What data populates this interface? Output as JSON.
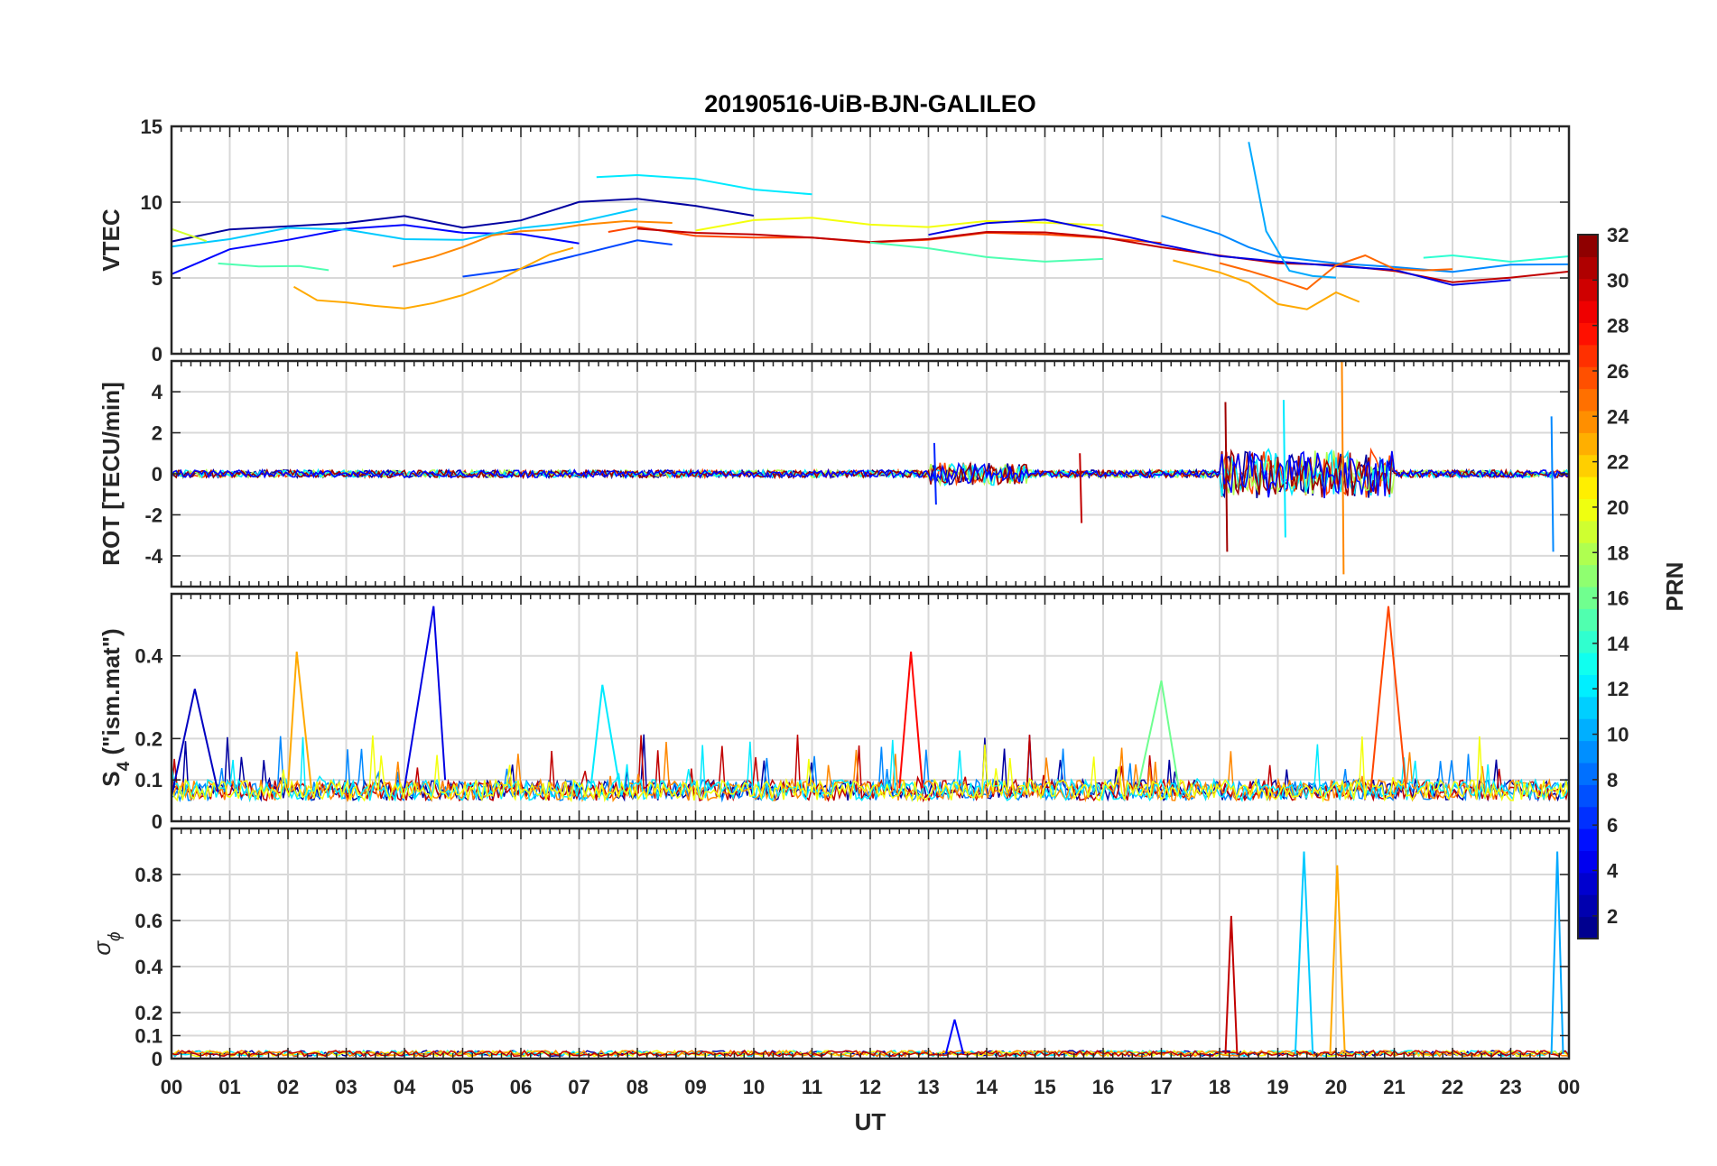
{
  "figure": {
    "title": "20190516-UiB-BJN-GALILEO",
    "x_axis_label": "UT",
    "x_tick_labels": [
      "00",
      "01",
      "02",
      "03",
      "04",
      "05",
      "06",
      "07",
      "08",
      "09",
      "10",
      "11",
      "12",
      "13",
      "14",
      "15",
      "16",
      "17",
      "18",
      "19",
      "20",
      "21",
      "22",
      "23",
      "00"
    ]
  },
  "panels": [
    {
      "id": "vtec",
      "ylabel": "VTEC",
      "ylim": [
        0,
        15
      ],
      "yticks": [
        0,
        5,
        10,
        15
      ],
      "ytick_labels": [
        "0",
        "5",
        "10",
        "15"
      ]
    },
    {
      "id": "rot",
      "ylabel": "ROT [TECU/min]",
      "ylim": [
        -5.5,
        5.5
      ],
      "yticks": [
        -4,
        -2,
        0,
        2,
        4
      ],
      "ytick_labels": [
        "-4",
        "-2",
        "0",
        "2",
        "4"
      ]
    },
    {
      "id": "s4",
      "ylabel_main": "S",
      "ylabel_sub": "4",
      "ylabel_rest": " (\"ism.mat\")",
      "ylim": [
        0,
        0.55
      ],
      "yticks": [
        0,
        0.1,
        0.2,
        0.4
      ],
      "ytick_labels": [
        "0",
        "0.1",
        "0.2",
        "0.4"
      ]
    },
    {
      "id": "sigphi",
      "ylabel_main": "σ",
      "ylabel_sub": "ϕ",
      "ylim": [
        0,
        1.0
      ],
      "yticks": [
        0,
        0.1,
        0.2,
        0.4,
        0.6,
        0.8
      ],
      "ytick_labels": [
        "0",
        "0.1",
        "0.2",
        "0.4",
        "0.6",
        "0.8"
      ]
    }
  ],
  "colorbar": {
    "label": "PRN",
    "colormap": "jet",
    "range": [
      1,
      32
    ],
    "ticks": [
      2,
      4,
      6,
      8,
      10,
      12,
      14,
      16,
      18,
      20,
      22,
      24,
      26,
      28,
      30,
      32
    ],
    "tick_labels": [
      "2",
      "4",
      "6",
      "8",
      "10",
      "12",
      "14",
      "16",
      "18",
      "20",
      "22",
      "24",
      "26",
      "28",
      "30",
      "32"
    ]
  },
  "chart_data": {
    "type": "line",
    "title": "20190516-UiB-BJN-GALILEO",
    "xlabel": "UT",
    "xlim": [
      0,
      24
    ],
    "color_by": "PRN",
    "panels": [
      {
        "ylabel": "VTEC",
        "ylim": [
          0,
          15
        ],
        "grid": true,
        "series": [
          {
            "prn": 2,
            "x": [
              0.0,
              1.0,
              2.0,
              3.0,
              4.0,
              5.0,
              6.0,
              7.0,
              8.0,
              9.0,
              10.0
            ],
            "y": [
              7.5,
              8.3,
              8.4,
              8.6,
              9.0,
              8.4,
              8.8,
              10.0,
              10.2,
              9.7,
              9.2
            ]
          },
          {
            "prn": 5,
            "x": [
              0.0,
              1.0,
              2.0,
              3.0,
              4.0,
              5.0,
              6.0,
              7.0
            ],
            "y": [
              5.2,
              6.8,
              7.6,
              8.2,
              8.5,
              8.0,
              7.8,
              7.3
            ]
          },
          {
            "prn": 7,
            "x": [
              5.0,
              6.0,
              7.0,
              8.0,
              8.6
            ],
            "y": [
              5.0,
              5.5,
              6.5,
              7.5,
              7.2
            ]
          },
          {
            "prn": 12,
            "x": [
              7.3,
              8.0,
              9.0,
              10.0,
              11.0
            ],
            "y": [
              11.7,
              11.8,
              11.5,
              10.9,
              10.6
            ]
          },
          {
            "prn": 11,
            "x": [
              0.0,
              1.0,
              2.0,
              3.0,
              4.0,
              5.0,
              6.0,
              7.0,
              8.0
            ],
            "y": [
              7.0,
              7.6,
              8.4,
              8.2,
              7.6,
              7.5,
              8.2,
              8.8,
              9.5
            ]
          },
          {
            "prn": 15,
            "x": [
              0.8,
              1.5,
              2.2,
              2.7
            ],
            "y": [
              6.0,
              5.8,
              5.7,
              5.5
            ]
          },
          {
            "prn": 19,
            "x": [
              0.0,
              0.6
            ],
            "y": [
              8.2,
              7.4
            ]
          },
          {
            "prn": 23,
            "x": [
              2.1,
              2.5,
              3.0,
              3.5,
              4.0,
              4.5,
              5.0,
              5.5,
              6.0,
              6.5,
              6.9
            ],
            "y": [
              4.4,
              3.6,
              3.3,
              3.1,
              3.0,
              3.3,
              3.9,
              4.6,
              5.6,
              6.5,
              7.0
            ]
          },
          {
            "prn": 24,
            "x": [
              3.8,
              4.5,
              5.0,
              5.5,
              6.0,
              6.5,
              7.0,
              7.8,
              8.6
            ],
            "y": [
              5.8,
              6.4,
              7.0,
              7.8,
              8.0,
              8.2,
              8.4,
              8.7,
              8.7
            ]
          },
          {
            "prn": 26,
            "x": [
              7.5,
              8.0,
              9.0,
              10.0,
              11.0,
              12.0,
              13.0,
              14.0,
              15.0,
              16.0,
              17.0
            ],
            "y": [
              8.0,
              8.4,
              7.8,
              7.6,
              7.6,
              7.4,
              7.6,
              8.0,
              7.8,
              7.6,
              7.3
            ]
          },
          {
            "prn": 30,
            "x": [
              8.0,
              9.0,
              10.0,
              11.0,
              12.0,
              13.0,
              14.0,
              15.0,
              16.0,
              17.0,
              18.0,
              19.0,
              20.0,
              21.0,
              22.0,
              23.0,
              24.0
            ],
            "y": [
              8.3,
              8.0,
              7.8,
              7.6,
              7.4,
              7.5,
              8.0,
              8.0,
              7.6,
              7.0,
              6.4,
              6.0,
              5.8,
              5.4,
              4.8,
              5.0,
              5.4
            ]
          },
          {
            "prn": 20,
            "x": [
              9.0,
              10.0,
              11.0,
              12.0,
              13.0,
              14.0,
              15.0,
              16.0
            ],
            "y": [
              8.2,
              8.8,
              8.9,
              8.6,
              8.4,
              8.7,
              8.6,
              8.5
            ]
          },
          {
            "prn": 15,
            "x": [
              12.0,
              13.0,
              14.0,
              15.0,
              16.0
            ],
            "y": [
              7.4,
              7.0,
              6.3,
              6.1,
              6.2
            ]
          },
          {
            "prn": 4,
            "x": [
              13.0,
              14.0,
              15.0,
              16.0,
              17.0,
              18.0,
              19.0,
              20.0,
              21.0,
              22.0,
              23.0
            ],
            "y": [
              7.8,
              8.7,
              8.8,
              8.0,
              7.2,
              6.5,
              6.0,
              5.8,
              5.6,
              4.5,
              4.8
            ]
          },
          {
            "prn": 9,
            "x": [
              17.0,
              18.0,
              18.5,
              19.0,
              20.0,
              21.0,
              22.0,
              23.0,
              24.0
            ],
            "y": [
              9.0,
              8.0,
              7.0,
              6.5,
              6.0,
              5.8,
              5.4,
              5.8,
              5.8
            ]
          },
          {
            "prn": 23,
            "x": [
              17.2,
              18.0,
              18.5,
              19.0,
              19.5,
              20.0,
              20.4
            ],
            "y": [
              6.2,
              5.4,
              4.6,
              3.2,
              3.0,
              4.0,
              3.4
            ]
          },
          {
            "prn": 25,
            "x": [
              18.0,
              18.5,
              19.0,
              19.5,
              20.0,
              20.5,
              21.0,
              21.5,
              22.0
            ],
            "y": [
              6.0,
              5.5,
              4.8,
              4.2,
              5.8,
              6.5,
              5.6,
              5.5,
              5.6
            ]
          },
          {
            "prn": 10,
            "x": [
              18.5,
              18.8,
              19.2,
              19.6,
              20.0
            ],
            "y": [
              14.0,
              8.0,
              5.5,
              5.2,
              5.0
            ]
          },
          {
            "prn": 14,
            "x": [
              21.5,
              22.0,
              23.0,
              24.0
            ],
            "y": [
              6.3,
              6.5,
              6.0,
              6.5
            ]
          }
        ]
      },
      {
        "ylabel": "ROT [TECU/min]",
        "ylim": [
          -5.5,
          5.5
        ],
        "grid": true,
        "series": [
          {
            "prn": 26,
            "x": [
              0,
              24
            ],
            "y": [
              0,
              0
            ],
            "note_range": [
              -0.5,
              0.5
            ]
          },
          {
            "prn": 6,
            "x": [
              13.0,
              14.5
            ],
            "y": [
              1.5,
              -1.5
            ]
          },
          {
            "prn": 30,
            "x": [
              15.5,
              16.5
            ],
            "y": [
              1.0,
              -2.4
            ]
          },
          {
            "prn": 31,
            "x": [
              18.0,
              19.0
            ],
            "y": [
              3.5,
              -3.8
            ]
          },
          {
            "prn": 12,
            "x": [
              19.0,
              20.0
            ],
            "y": [
              3.6,
              -3.1
            ]
          },
          {
            "prn": 24,
            "x": [
              20.0,
              20.2
            ],
            "y": [
              5.5,
              -4.9
            ]
          },
          {
            "prn": 9,
            "x": [
              23.6,
              24.0
            ],
            "y": [
              2.8,
              -3.8
            ]
          }
        ]
      },
      {
        "ylabel": "S4 (\"ism.mat\")",
        "ylim": [
          0,
          0.55
        ],
        "grid": true,
        "series": [
          {
            "prn": 3,
            "x": [
              0.0,
              0.4,
              0.8
            ],
            "y": [
              0.06,
              0.32,
              0.07
            ]
          },
          {
            "prn": 4,
            "x": [
              4.0,
              4.5,
              4.7
            ],
            "y": [
              0.08,
              0.52,
              0.1
            ]
          },
          {
            "prn": 23,
            "x": [
              2.0,
              2.15,
              2.4
            ],
            "y": [
              0.08,
              0.41,
              0.08
            ]
          },
          {
            "prn": 28,
            "x": [
              12.5,
              12.7,
              12.9
            ],
            "y": [
              0.08,
              0.41,
              0.08
            ]
          },
          {
            "prn": 26,
            "x": [
              20.6,
              20.9,
              21.2
            ],
            "y": [
              0.08,
              0.52,
              0.08
            ]
          },
          {
            "prn": 12,
            "x": [
              7.2,
              7.4,
              7.7
            ],
            "y": [
              0.08,
              0.33,
              0.08
            ]
          },
          {
            "prn": 16,
            "x": [
              16.6,
              17.0,
              17.3
            ],
            "y": [
              0.08,
              0.34,
              0.08
            ]
          }
        ]
      },
      {
        "ylabel": "σ_ϕ",
        "ylim": [
          0,
          1.0
        ],
        "grid": true,
        "series": [
          {
            "prn": 30,
            "x": [
              18.1,
              18.2,
              18.3
            ],
            "y": [
              0.02,
              0.62,
              0.02
            ]
          },
          {
            "prn": 11,
            "x": [
              19.3,
              19.45,
              19.6
            ],
            "y": [
              0.02,
              0.9,
              0.02
            ]
          },
          {
            "prn": 23,
            "x": [
              19.9,
              20.02,
              20.15
            ],
            "y": [
              0.02,
              0.84,
              0.02
            ]
          },
          {
            "prn": 10,
            "x": [
              23.7,
              23.8,
              23.9
            ],
            "y": [
              0.02,
              0.9,
              0.02
            ]
          },
          {
            "prn": 5,
            "x": [
              13.3,
              13.45,
              13.6
            ],
            "y": [
              0.02,
              0.17,
              0.02
            ]
          }
        ]
      }
    ]
  }
}
